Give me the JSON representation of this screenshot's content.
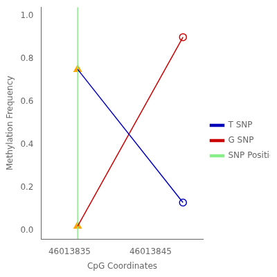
{
  "chart_data": {
    "type": "line",
    "xlabel": "CpG Coordinates",
    "ylabel": "Methylation Frequency",
    "series": [
      {
        "name": "T SNP",
        "color": "#0000bb",
        "x": [
          46013836,
          46013849
        ],
        "values": [
          0.75,
          0.13
        ]
      },
      {
        "name": "G SNP",
        "color": "#cc0000",
        "x": [
          46013836,
          46013849
        ],
        "values": [
          0.02,
          0.9
        ]
      },
      {
        "name": "SNP Position",
        "type": "vline",
        "color": "#88ee88",
        "x": [
          46013836
        ]
      },
      {
        "type": "scatter",
        "marker": "open_circle",
        "color": "#0000bb",
        "x": [
          46013849
        ],
        "values": [
          0.13
        ]
      },
      {
        "type": "scatter",
        "marker": "open_circle",
        "color": "#cc0000",
        "x": [
          46013849
        ],
        "values": [
          0.9
        ]
      },
      {
        "type": "scatter",
        "marker": "triangle",
        "color": "#ffa500",
        "x": [
          46013836,
          46013836
        ],
        "values": [
          0.75,
          0.02
        ]
      }
    ],
    "xlim": [
      46013831.5,
      46013851.5
    ],
    "xticks": [
      46013835,
      46013845
    ],
    "ylim": [
      -0.04,
      1.04
    ],
    "yticks": [
      {
        "value": 0,
        "label": "0.0"
      },
      0.2,
      0.4,
      0.6,
      0.8,
      {
        "value": 1,
        "label": "1.0"
      }
    ],
    "grid": false,
    "legend": "right"
  }
}
